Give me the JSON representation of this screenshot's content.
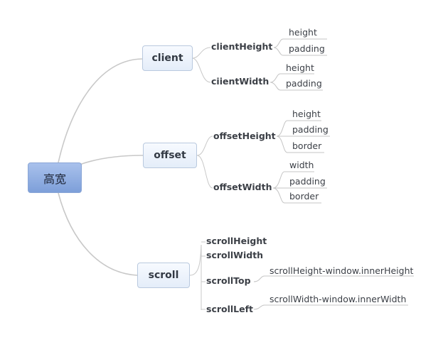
{
  "root": {
    "label": "高宽"
  },
  "branches": [
    {
      "label": "client",
      "children": [
        {
          "label": "clientHeight",
          "leaves": [
            "height",
            "padding"
          ]
        },
        {
          "label": "ciientWidth",
          "leaves": [
            "height",
            "padding"
          ]
        }
      ]
    },
    {
      "label": "offset",
      "children": [
        {
          "label": "offsetHeight",
          "leaves": [
            "height",
            "padding",
            "border"
          ]
        },
        {
          "label": "offsetWidth",
          "leaves": [
            "width",
            "padding",
            "border"
          ]
        }
      ]
    },
    {
      "label": "scroll",
      "children": [
        {
          "label": "scrollHeight",
          "leaves": []
        },
        {
          "label": "scrollWidth",
          "leaves": []
        },
        {
          "label": "scrollTop",
          "leaves": [
            "scrollHeight-window.innerHeight"
          ]
        },
        {
          "label": "scrollLeft",
          "leaves": [
            "scrollWidth-window.innerWidth"
          ]
        }
      ]
    }
  ],
  "colors": {
    "line": "#c8c8c8",
    "leaf_underline": "#c4c4c4"
  }
}
